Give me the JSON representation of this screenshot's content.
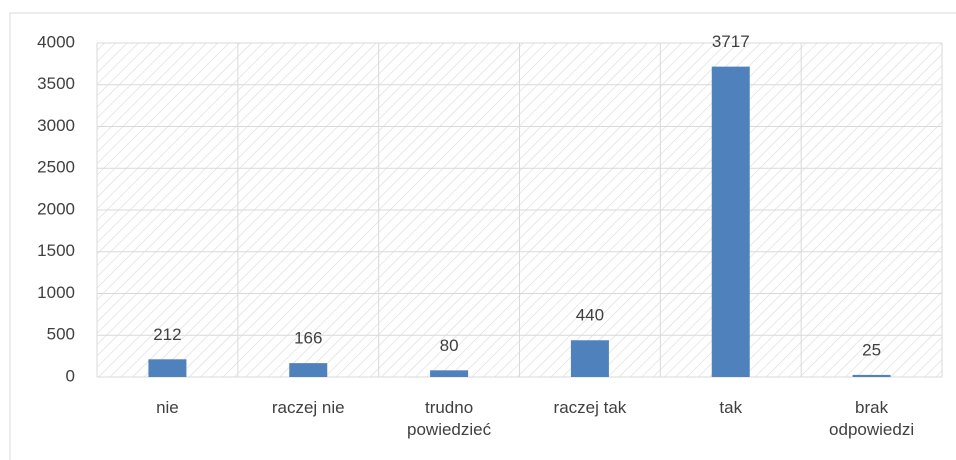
{
  "chart_data": {
    "type": "bar",
    "categories": [
      "nie",
      "raczej nie",
      "trudno powiedzieć",
      "raczej tak",
      "tak",
      "brak odpowiedzi"
    ],
    "values": [
      212,
      166,
      80,
      440,
      3717,
      25
    ],
    "color": "#4f81bd",
    "ylim": [
      0,
      4000
    ],
    "yticks": [
      0,
      500,
      1000,
      1500,
      2000,
      2500,
      3000,
      3500,
      4000
    ],
    "grid": true,
    "data_labels": true
  }
}
